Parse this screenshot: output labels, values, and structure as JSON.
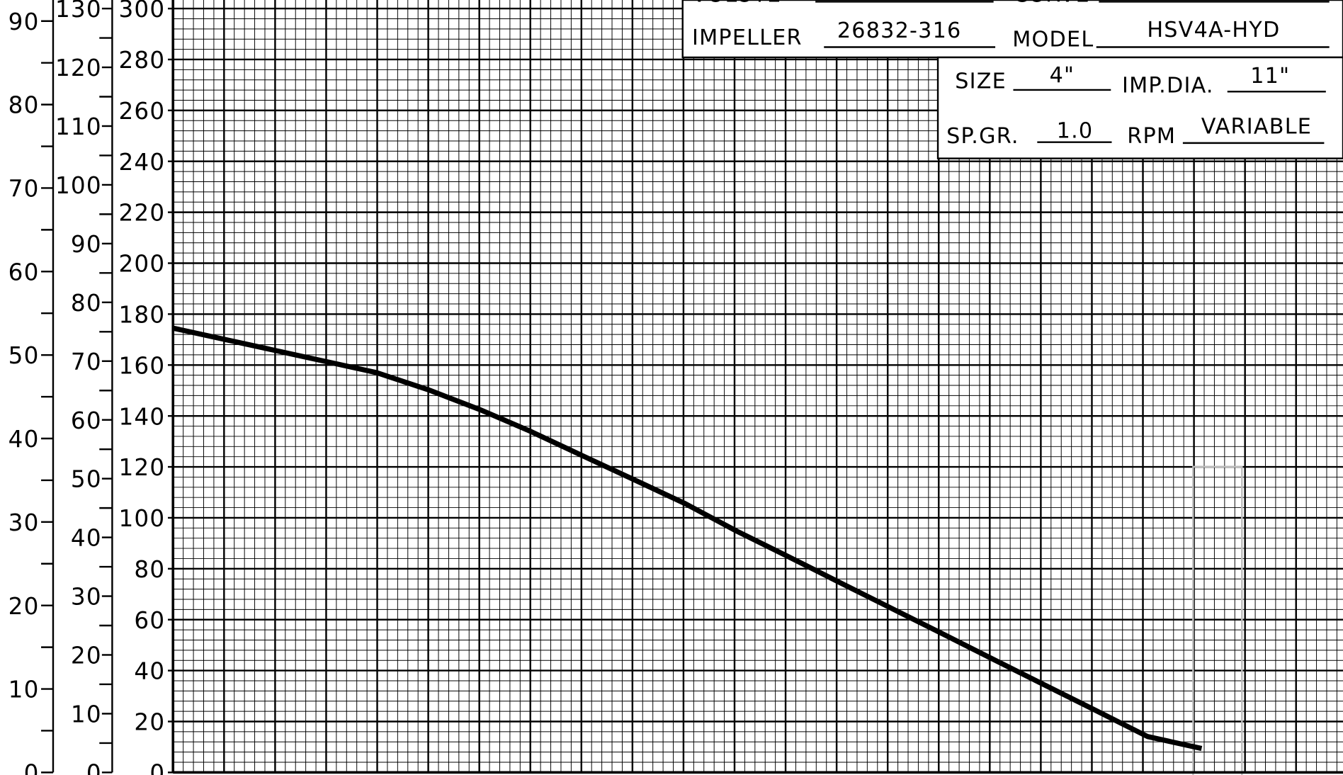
{
  "chart_data": {
    "type": "line",
    "x": [
      0,
      2.99,
      3.99,
      5.0,
      6.0,
      7.01,
      8.02,
      9.03,
      10.03,
      11.04,
      12.05,
      13.05,
      14.06,
      15.07,
      16.07,
      17.08,
      18.09,
      19.09,
      20.15
    ],
    "series": [
      {
        "color": "#000000",
        "values": [
          174.5,
          161.4,
          157,
          150.3,
          142.6,
          133.9,
          124.4,
          115,
          105.6,
          94.8,
          84.8,
          74.7,
          64.6,
          54.5,
          44.4,
          34.3,
          24.2,
          14.1,
          9.4
        ]
      }
    ],
    "xlim": [
      0,
      22.9
    ],
    "ylim": [
      0,
      300
    ],
    "yticks": [
      0,
      20,
      40,
      60,
      80,
      100,
      120,
      140,
      160,
      180,
      200,
      220,
      240,
      260,
      280,
      300
    ],
    "y2lim": [
      0,
      130
    ],
    "y2ticks": [
      0,
      10,
      20,
      30,
      40,
      50,
      60,
      70,
      80,
      90,
      100,
      110,
      120,
      130
    ],
    "y3lim": [
      0,
      91.5
    ],
    "y3ticks": [
      0,
      10,
      20,
      30,
      40,
      50,
      60,
      70,
      80,
      90
    ],
    "grid": true
  },
  "title_block": {
    "fields": [
      {
        "label": "VOLUTE"
      },
      {
        "label": "CURVE"
      },
      {
        "label": "IMPELLER",
        "value": "26832-316"
      },
      {
        "label": "MODEL",
        "value": "HSV4A-HYD"
      },
      {
        "label": "SIZE",
        "value": "4\""
      },
      {
        "label": "IMP.DIA.",
        "value": "11\""
      },
      {
        "label": "SP.GR.",
        "value": "1.0"
      },
      {
        "label": "RPM",
        "value": "VARIABLE"
      }
    ]
  }
}
